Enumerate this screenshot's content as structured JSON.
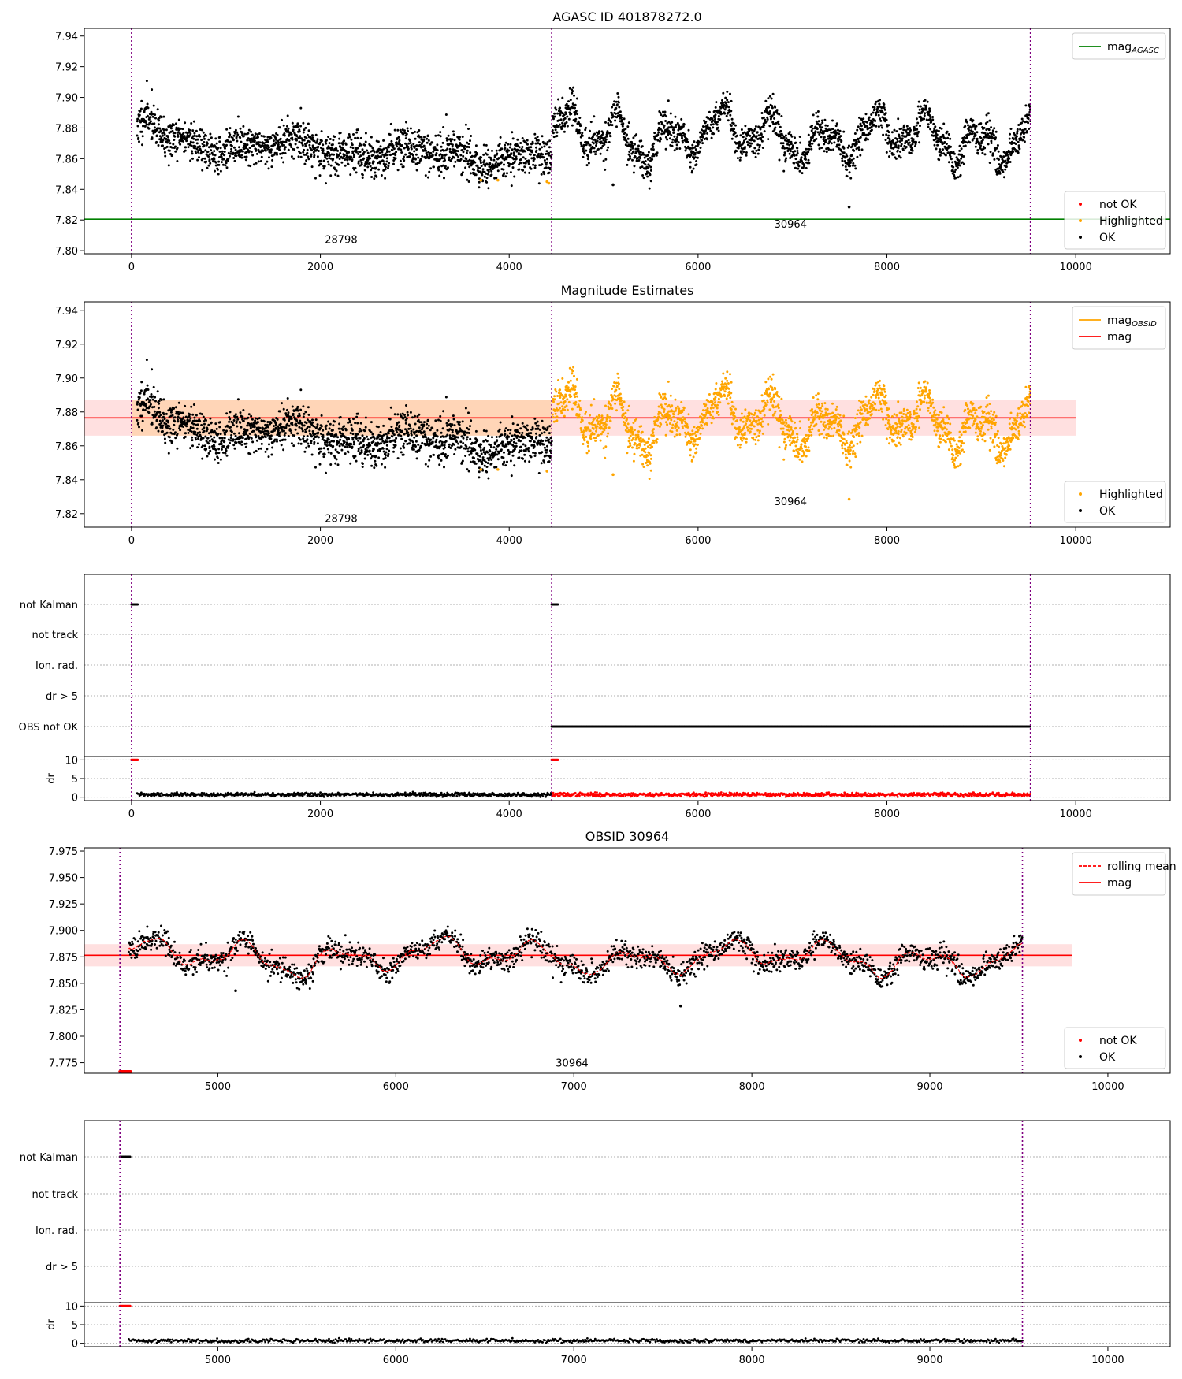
{
  "chart_data": [
    {
      "id": "agasc",
      "type": "scatter",
      "title": "AGASC ID 401878272.0",
      "xlim": [
        -500,
        11000
      ],
      "ylim": [
        7.798,
        7.945
      ],
      "xticks": [
        0,
        2000,
        4000,
        6000,
        8000,
        10000
      ],
      "yticks": [
        7.8,
        7.82,
        7.84,
        7.86,
        7.88,
        7.9,
        7.92,
        7.94
      ],
      "ydecimals": 2,
      "vlines": [
        0,
        4450,
        9520
      ],
      "obsid_labels": [
        {
          "x": 2220,
          "y": 7.805,
          "text": "28798"
        },
        {
          "x": 6980,
          "y": 7.815,
          "text": "30964"
        }
      ],
      "hlines": [
        {
          "y": 7.8205,
          "x0": -500,
          "x1": 11000,
          "color": "#008000"
        }
      ],
      "series": [
        {
          "obs": 1,
          "x0": 60,
          "x1": 4450,
          "n": 1700,
          "base": 7.872,
          "trend": -0.012,
          "noise": 0.0065,
          "seed": 11,
          "color": "#000000"
        },
        {
          "obs": 2,
          "x0": 4460,
          "x1": 9520,
          "n": 1900,
          "base": 7.876,
          "trend": -0.003,
          "noise": 0.0055,
          "seed": 23,
          "color": "#000000"
        }
      ],
      "extra_points": [
        {
          "x": 3700,
          "y": 7.846,
          "color": "#ffa500"
        },
        {
          "x": 3880,
          "y": 7.846,
          "color": "#ffa500"
        },
        {
          "x": 4400,
          "y": 7.845,
          "color": "#ffa500"
        },
        {
          "x": 4420,
          "y": 7.844,
          "color": "#ffa500"
        },
        {
          "x": 7600,
          "y": 7.8285,
          "color": "#000000"
        },
        {
          "x": 5100,
          "y": 7.843,
          "color": "#000000"
        }
      ],
      "legend_top": [
        {
          "kind": "line",
          "color": "#008000",
          "label": "mag",
          "sub": "AGASC"
        }
      ],
      "legend_bottom": [
        {
          "kind": "dot",
          "color": "#ff0000",
          "label": "not OK"
        },
        {
          "kind": "dot",
          "color": "#ffa500",
          "label": "Highlighted"
        },
        {
          "kind": "dot",
          "color": "#000000",
          "label": "OK"
        }
      ]
    },
    {
      "id": "estimates",
      "type": "scatter",
      "title": "Magnitude Estimates",
      "xlim": [
        -500,
        11000
      ],
      "ylim": [
        7.812,
        7.945
      ],
      "xticks": [
        0,
        2000,
        4000,
        6000,
        8000,
        10000
      ],
      "yticks": [
        7.82,
        7.84,
        7.86,
        7.88,
        7.9,
        7.92,
        7.94
      ],
      "ydecimals": 2,
      "vlines": [
        0,
        4450,
        9520
      ],
      "obsid_labels": [
        {
          "x": 2220,
          "y": 7.815,
          "text": "28798"
        },
        {
          "x": 6980,
          "y": 7.825,
          "text": "30964"
        }
      ],
      "bands": [
        {
          "x0": -500,
          "x1": 10000,
          "y0": 7.866,
          "y1": 7.887,
          "color": "#ff0000",
          "opacity": 0.12
        },
        {
          "x0": 0,
          "x1": 4450,
          "y0": 7.866,
          "y1": 7.887,
          "color": "#ffa500",
          "opacity": 0.18
        }
      ],
      "hlines": [
        {
          "y": 7.8765,
          "x0": -500,
          "x1": 10000,
          "color": "#ff0000"
        }
      ],
      "series": [
        {
          "obs": 1,
          "x0": 60,
          "x1": 4450,
          "n": 1700,
          "base": 7.872,
          "trend": -0.012,
          "noise": 0.0065,
          "seed": 11,
          "color": "#000000"
        },
        {
          "obs": 2,
          "x0": 4460,
          "x1": 9520,
          "n": 1900,
          "base": 7.876,
          "trend": -0.003,
          "noise": 0.0055,
          "seed": 23,
          "color": "#ffa500"
        }
      ],
      "extra_points": [
        {
          "x": 3700,
          "y": 7.846,
          "color": "#ffa500"
        },
        {
          "x": 3880,
          "y": 7.846,
          "color": "#ffa500"
        },
        {
          "x": 4400,
          "y": 7.845,
          "color": "#ffa500"
        },
        {
          "x": 7600,
          "y": 7.8285,
          "color": "#ffa500"
        },
        {
          "x": 5100,
          "y": 7.843,
          "color": "#ffa500"
        }
      ],
      "legend_top": [
        {
          "kind": "line",
          "color": "#ffa500",
          "label": "mag",
          "sub": "OBSID"
        },
        {
          "kind": "line",
          "color": "#ff0000",
          "label": "mag",
          "sub": ""
        }
      ],
      "legend_bottom": [
        {
          "kind": "dot",
          "color": "#ffa500",
          "label": "Highlighted"
        },
        {
          "kind": "dot",
          "color": "#000000",
          "label": "OK"
        }
      ]
    },
    {
      "id": "flags_all",
      "type": "scatter",
      "xlim": [
        -500,
        11000
      ],
      "xticks": [
        0,
        2000,
        4000,
        6000,
        8000,
        10000
      ],
      "vlines": [
        0,
        4450,
        9520
      ],
      "flag_labels": [
        "not Kalman",
        "not track",
        "Ion. rad.",
        "dr > 5",
        "OBS not OK"
      ],
      "flag_segments": [
        {
          "row": 0,
          "x0": 0,
          "x1": 70,
          "color": "#000000"
        },
        {
          "row": 0,
          "x0": 4450,
          "x1": 4520,
          "color": "#000000"
        },
        {
          "row": 4,
          "x0": 4450,
          "x1": 9520,
          "color": "#000000"
        }
      ],
      "dr": {
        "ylim": [
          -0.5,
          10.5
        ],
        "yticks": [
          0,
          5,
          10
        ],
        "ylabel": "dr",
        "segments": [
          {
            "x0": 60,
            "x1": 4450,
            "n": 700,
            "base": 0.7,
            "noise": 0.25,
            "seed": 31,
            "color": "#000000"
          },
          {
            "x0": 4460,
            "x1": 9520,
            "n": 800,
            "base": 0.7,
            "noise": 0.25,
            "seed": 37,
            "color": "#ff0000"
          }
        ],
        "saturated": [
          {
            "x0": 0,
            "x1": 70
          },
          {
            "x0": 4450,
            "x1": 4520
          }
        ]
      }
    },
    {
      "id": "obsid",
      "type": "scatter",
      "title": "OBSID 30964",
      "xlim": [
        4250,
        10350
      ],
      "ylim": [
        7.765,
        7.978
      ],
      "xticks": [
        5000,
        6000,
        7000,
        8000,
        9000,
        10000
      ],
      "yticks": [
        7.775,
        7.8,
        7.825,
        7.85,
        7.875,
        7.9,
        7.925,
        7.95,
        7.975
      ],
      "ydecimals": 3,
      "vlines": [
        4450,
        9520
      ],
      "obsid_labels": [
        {
          "x": 6990,
          "y": 7.7715,
          "text": "30964"
        }
      ],
      "bands": [
        {
          "x0": 4250,
          "x1": 9800,
          "y0": 7.866,
          "y1": 7.887,
          "color": "#ff0000",
          "opacity": 0.12
        }
      ],
      "hlines": [
        {
          "y": 7.8765,
          "x0": 4250,
          "x1": 9800,
          "color": "#ff0000"
        }
      ],
      "series": [
        {
          "obs": 2,
          "x0": 4500,
          "x1": 9520,
          "n": 1900,
          "base": 7.876,
          "trend": -0.003,
          "noise": 0.0055,
          "seed": 23,
          "color": "#000000",
          "rolling": true
        }
      ],
      "extra_points": [
        {
          "x": 7600,
          "y": 7.8285,
          "color": "#000000"
        },
        {
          "x": 5100,
          "y": 7.843,
          "color": "#000000"
        }
      ],
      "red_floor": {
        "x0": 4450,
        "x1": 4510,
        "y": 7.7665
      },
      "legend_top": [
        {
          "kind": "dash",
          "color": "#ff0000",
          "label": "rolling mean",
          "sub": ""
        },
        {
          "kind": "line",
          "color": "#ff0000",
          "label": "mag",
          "sub": ""
        }
      ],
      "legend_bottom": [
        {
          "kind": "dot",
          "color": "#ff0000",
          "label": "not OK"
        },
        {
          "kind": "dot",
          "color": "#000000",
          "label": "OK"
        }
      ]
    },
    {
      "id": "flags_obsid",
      "type": "scatter",
      "xlim": [
        4250,
        10350
      ],
      "xticks": [
        5000,
        6000,
        7000,
        8000,
        9000,
        10000
      ],
      "vlines": [
        4450,
        9520
      ],
      "flag_labels": [
        "not Kalman",
        "not track",
        "Ion. rad.",
        "dr > 5"
      ],
      "flag_segments": [
        {
          "row": 0,
          "x0": 4450,
          "x1": 4510,
          "color": "#000000"
        }
      ],
      "dr": {
        "ylim": [
          -0.5,
          10.5
        ],
        "yticks": [
          0,
          5,
          10
        ],
        "ylabel": "dr",
        "segments": [
          {
            "x0": 4500,
            "x1": 9520,
            "n": 800,
            "base": 0.7,
            "noise": 0.25,
            "seed": 41,
            "color": "#000000"
          }
        ],
        "saturated": [
          {
            "x0": 4450,
            "x1": 4510
          }
        ]
      }
    }
  ]
}
